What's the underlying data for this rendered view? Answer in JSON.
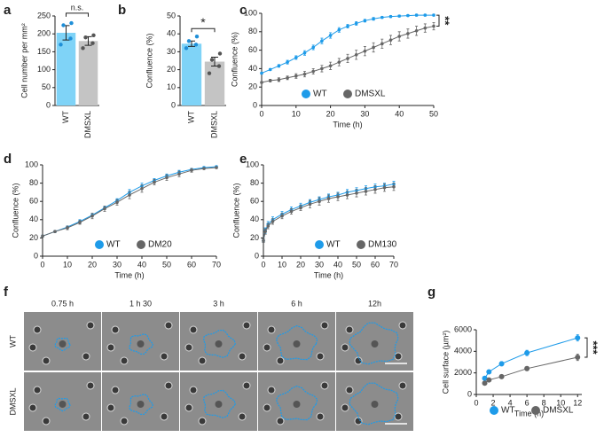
{
  "chart_data": [
    {
      "type": "bar",
      "label": "a",
      "ylabel": "Cell number per mm²",
      "categories": [
        "WT",
        "DMSXL"
      ],
      "values": [
        203,
        180
      ],
      "errors": [
        20,
        12
      ],
      "colors": [
        "#7fd3f7",
        "#c4c4c4"
      ],
      "point_colors": [
        "#1f8fd8",
        "#555555"
      ],
      "points": [
        [
          170,
          187,
          224,
          230
        ],
        [
          160,
          174,
          190,
          196
        ]
      ],
      "ylim": [
        0,
        250
      ],
      "yticks": [
        0,
        50,
        100,
        150,
        200,
        250
      ],
      "annotation": "n.s."
    },
    {
      "type": "bar",
      "label": "b",
      "ylabel": "Confluence (%)",
      "categories": [
        "WT",
        "DMSXL"
      ],
      "values": [
        34.5,
        24.5
      ],
      "errors": [
        1.5,
        2.5
      ],
      "colors": [
        "#7fd3f7",
        "#c4c4c4"
      ],
      "point_colors": [
        "#1f8fd8",
        "#555555"
      ],
      "points": [
        [
          32,
          34,
          36,
          38.5
        ],
        [
          18,
          22,
          25.5,
          29
        ]
      ],
      "ylim": [
        0,
        50
      ],
      "yticks": [
        0,
        10,
        20,
        30,
        40,
        50
      ],
      "annotation": "*"
    },
    {
      "type": "line",
      "label": "c",
      "xlabel": "Time (h)",
      "ylabel": "Confluence (%)",
      "legend": "lower right",
      "x": [
        0,
        2.5,
        5,
        7.5,
        10,
        12.5,
        15,
        17.5,
        20,
        22.5,
        25,
        27.5,
        30,
        32.5,
        35,
        37.5,
        40,
        42.5,
        45,
        47.5,
        50
      ],
      "series": [
        {
          "name": "WT",
          "color": "#1e9be9",
          "values": [
            35,
            39,
            43,
            47,
            52,
            57,
            63,
            70,
            76,
            82,
            86,
            89,
            92,
            94,
            95.5,
            96.5,
            97,
            97.5,
            98,
            98,
            98
          ],
          "errors": [
            1,
            1,
            1.5,
            2,
            2,
            2.5,
            2.5,
            3,
            3,
            2.5,
            2,
            2,
            1.5,
            1.5,
            1,
            1,
            1,
            1,
            1,
            1,
            1
          ]
        },
        {
          "name": "DMSXL",
          "color": "#666666",
          "values": [
            25,
            27,
            28,
            30,
            32,
            34,
            37,
            40,
            43,
            47,
            51,
            55,
            59,
            63,
            67,
            71,
            75,
            78,
            81,
            84,
            86
          ],
          "errors": [
            1,
            1.5,
            2,
            2,
            2.5,
            3,
            3,
            3.5,
            4,
            4,
            4.5,
            5,
            5,
            5,
            5,
            5,
            5,
            5,
            5,
            4.5,
            4
          ]
        }
      ],
      "xlim": [
        0,
        50
      ],
      "xticks": [
        0,
        10,
        20,
        30,
        40,
        50
      ],
      "ylim": [
        0,
        100
      ],
      "yticks": [
        0,
        20,
        40,
        60,
        80,
        100
      ],
      "annotation": "**"
    },
    {
      "type": "line",
      "label": "d",
      "xlabel": "Time (h)",
      "ylabel": "Confluence (%)",
      "legend": "lower right",
      "x": [
        0,
        5,
        10,
        15,
        20,
        25,
        30,
        35,
        40,
        45,
        50,
        55,
        60,
        65,
        70
      ],
      "series": [
        {
          "name": "WT",
          "color": "#1e9be9",
          "values": [
            22,
            27,
            32,
            38,
            45,
            53,
            61,
            70,
            77,
            83,
            88,
            92,
            95,
            97,
            98
          ],
          "errors": [
            1,
            1,
            1,
            2,
            2,
            2,
            2,
            3,
            3,
            2,
            2,
            2,
            1,
            1,
            1
          ]
        },
        {
          "name": "DM20",
          "color": "#666666",
          "values": [
            22,
            27,
            31,
            37,
            44,
            52,
            59,
            67,
            74,
            81,
            86,
            90,
            94,
            96,
            97
          ],
          "errors": [
            1,
            1,
            2,
            2,
            3,
            3,
            3,
            4,
            4,
            3,
            3,
            3,
            2,
            1,
            1
          ]
        }
      ],
      "xlim": [
        0,
        70
      ],
      "xticks": [
        0,
        10,
        20,
        30,
        40,
        50,
        60,
        70
      ],
      "ylim": [
        0,
        100
      ],
      "yticks": [
        0,
        20,
        40,
        60,
        80,
        100
      ]
    },
    {
      "type": "line",
      "label": "e",
      "xlabel": "Time (h)",
      "ylabel": "Confluence (%)",
      "legend": "lower right",
      "x": [
        0,
        1,
        2.5,
        5,
        10,
        15,
        20,
        25,
        30,
        35,
        40,
        45,
        50,
        55,
        60,
        65,
        70
      ],
      "series": [
        {
          "name": "WT",
          "color": "#1e9be9",
          "values": [
            17,
            28,
            35,
            40,
            46,
            51,
            55,
            59,
            62,
            65,
            67,
            70,
            72,
            74,
            76,
            77,
            79
          ],
          "errors": [
            2,
            3,
            3,
            3,
            3,
            3,
            3,
            3,
            3,
            3,
            3,
            3,
            3,
            3,
            3,
            3,
            3
          ]
        },
        {
          "name": "DM130",
          "color": "#666666",
          "values": [
            17,
            27,
            33,
            38,
            44,
            49,
            53,
            57,
            60,
            63,
            65,
            67,
            69,
            71,
            73,
            75,
            76
          ],
          "errors": [
            2,
            3,
            3,
            3,
            3,
            3,
            3,
            4,
            4,
            4,
            4,
            4,
            4,
            4,
            4,
            4,
            4
          ]
        }
      ],
      "xlim": [
        0,
        70
      ],
      "xticks": [
        0,
        10,
        20,
        30,
        40,
        50,
        60,
        70
      ],
      "ylim": [
        0,
        100
      ],
      "yticks": [
        0,
        20,
        40,
        60,
        80,
        100
      ]
    },
    {
      "type": "line",
      "label": "g",
      "xlabel": "Time (h)",
      "ylabel": "Cell surface (µm²)",
      "legend": "lower right",
      "x": [
        1,
        1.5,
        3,
        6,
        12
      ],
      "series": [
        {
          "name": "WT",
          "color": "#1e9be9",
          "values": [
            1500,
            2100,
            2850,
            3850,
            5250
          ],
          "errors": [
            100,
            150,
            200,
            250,
            300
          ]
        },
        {
          "name": "DMSXL",
          "color": "#666666",
          "values": [
            1050,
            1350,
            1650,
            2400,
            3450
          ],
          "errors": [
            80,
            100,
            100,
            200,
            300
          ]
        }
      ],
      "xlim": [
        0,
        12.5
      ],
      "xticks": [
        0,
        2,
        4,
        6,
        8,
        10,
        12
      ],
      "ylim": [
        0,
        6000
      ],
      "yticks": [
        0,
        2000,
        4000,
        6000
      ],
      "annotation": "***"
    }
  ],
  "image_panel": {
    "label": "f",
    "columns": [
      "0.75 h",
      "1 h 30",
      "3 h",
      "6 h",
      "12h"
    ],
    "rows": [
      "WT",
      "DMSXL"
    ]
  }
}
